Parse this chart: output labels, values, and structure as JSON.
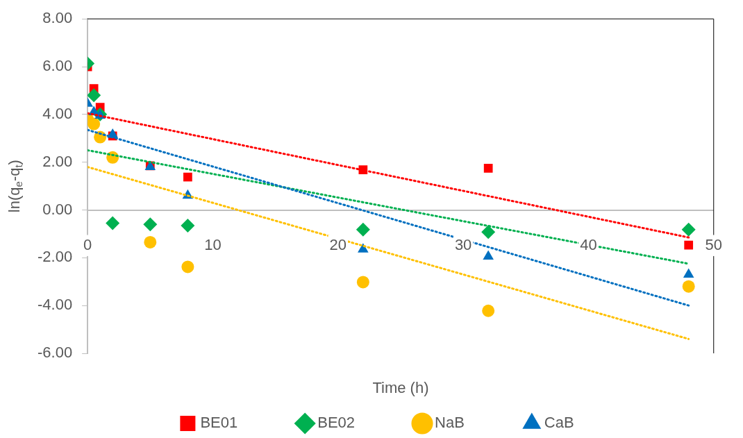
{
  "chart_data": {
    "type": "scatter",
    "xlabel": "Time (h)",
    "ylabel": "ln(q$_{e}$-q$_{t}$)",
    "xlim": [
      0,
      50
    ],
    "xticks": [
      0,
      10,
      20,
      30,
      40,
      50
    ],
    "ylim": [
      -6,
      8
    ],
    "yticks": [
      {
        "value": -6,
        "label": "-6.00"
      },
      {
        "value": -4,
        "label": "-4.00"
      },
      {
        "value": -2,
        "label": "-2.00"
      },
      {
        "value": 0,
        "label": "0.00"
      },
      {
        "value": 2,
        "label": "2.00"
      },
      {
        "value": 4,
        "label": "4.00"
      },
      {
        "value": 6,
        "label": "6.00"
      },
      {
        "value": 8,
        "label": "8.00"
      }
    ],
    "grid": false,
    "legend": "bottom",
    "series": [
      {
        "name": "BE01",
        "color": "#ff0000",
        "marker": "square",
        "x": [
          0,
          0.5,
          1,
          2,
          5,
          8,
          22,
          32,
          48
        ],
        "values": [
          6.0,
          5.08,
          4.3,
          3.1,
          1.85,
          1.38,
          1.68,
          1.75,
          -1.47
        ]
      },
      {
        "name": "BE02",
        "color": "#00b050",
        "marker": "diamond",
        "x": [
          0,
          0.5,
          1,
          2,
          5,
          8,
          22,
          32,
          48
        ],
        "values": [
          6.13,
          4.8,
          4.0,
          -0.55,
          -0.6,
          -0.65,
          -0.82,
          -0.92,
          -0.82
        ]
      },
      {
        "name": "NaB",
        "color": "#ffc000",
        "marker": "circle",
        "x": [
          0,
          0.5,
          1,
          2,
          5,
          8,
          22,
          32,
          48
        ],
        "values": [
          3.8,
          3.6,
          3.05,
          2.2,
          -1.35,
          -2.38,
          -3.02,
          -4.22,
          -3.2
        ]
      },
      {
        "name": "CaB",
        "color": "#0070c0",
        "marker": "triangle",
        "x": [
          0,
          0.5,
          1,
          2,
          5,
          8,
          22,
          32,
          48
        ],
        "values": [
          4.45,
          4.1,
          3.95,
          3.15,
          1.8,
          0.6,
          -1.65,
          -1.95,
          -2.7
        ]
      },
      {
        "type": "line",
        "color": "#ff0000",
        "line_style": "dotted",
        "marker": "none",
        "x": [
          0,
          48
        ],
        "values": [
          4.05,
          -1.15
        ]
      },
      {
        "type": "line",
        "color": "#00b050",
        "line_style": "dotted",
        "marker": "none",
        "x": [
          0,
          48
        ],
        "values": [
          2.5,
          -2.25
        ]
      },
      {
        "type": "line",
        "color": "#0070c0",
        "line_style": "dotted",
        "marker": "none",
        "x": [
          0,
          48
        ],
        "values": [
          3.35,
          -4.0
        ]
      },
      {
        "type": "line",
        "color": "#ffc000",
        "line_style": "dotted",
        "marker": "none",
        "x": [
          0,
          48
        ],
        "values": [
          1.8,
          -5.4
        ]
      }
    ]
  }
}
